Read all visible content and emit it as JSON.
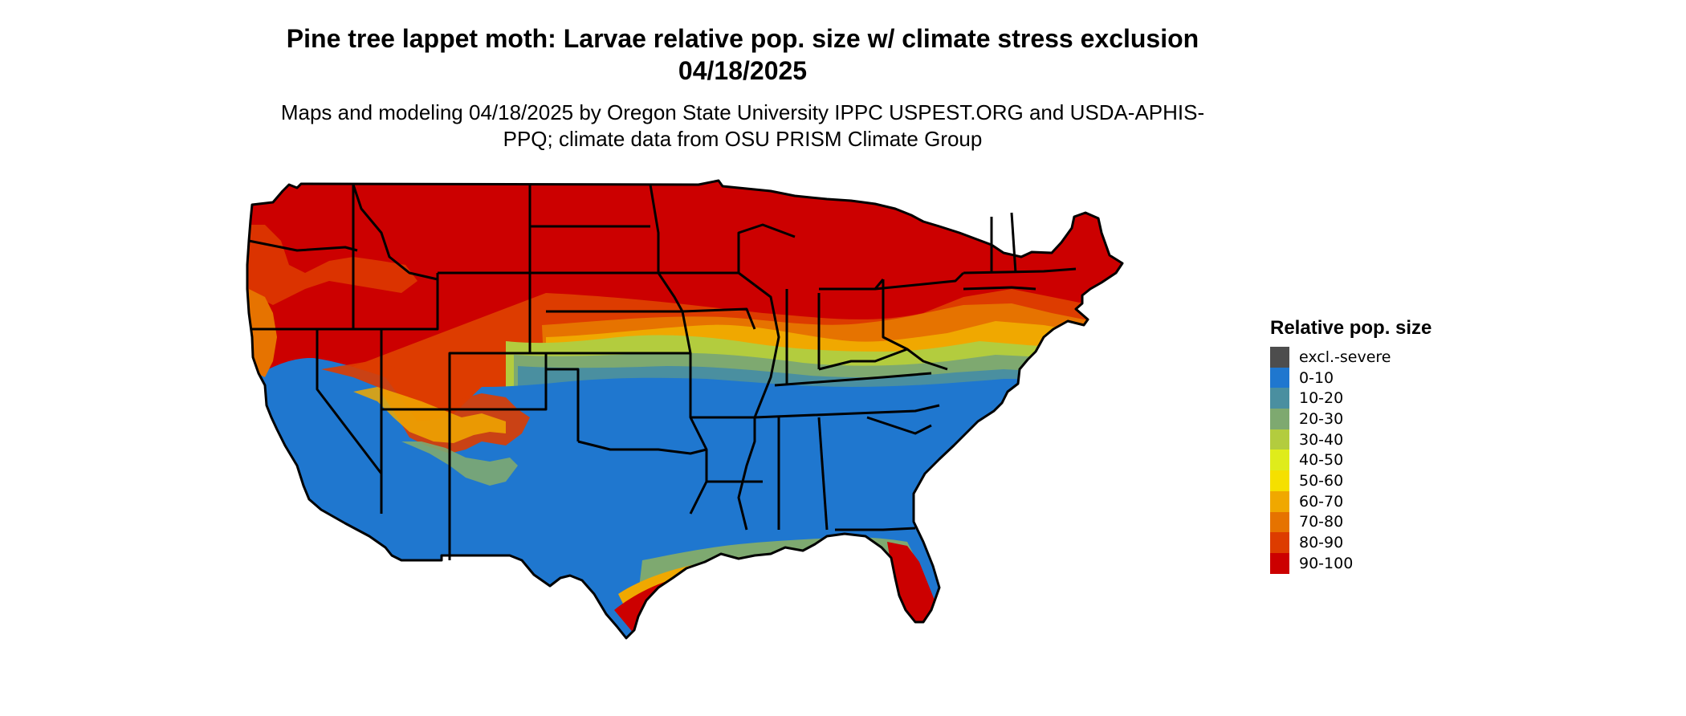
{
  "title": "Pine tree lappet moth: Larvae relative pop. size w/ climate stress exclusion 04/18/2025",
  "subtitle": "Maps and modeling 04/18/2025 by Oregon State University IPPC USPEST.ORG and USDA-APHIS-PPQ; climate data from OSU PRISM Climate Group",
  "legend": {
    "title": "Relative pop. size",
    "items": [
      {
        "label": "excl.-severe",
        "color": "#4d4d4d"
      },
      {
        "label": "0-10",
        "color": "#1f77cf"
      },
      {
        "label": "10-20",
        "color": "#4a8fa0"
      },
      {
        "label": "20-30",
        "color": "#7ea970"
      },
      {
        "label": "30-40",
        "color": "#b3cc3e"
      },
      {
        "label": "40-50",
        "color": "#dfec1b"
      },
      {
        "label": "50-60",
        "color": "#f5e000"
      },
      {
        "label": "60-70",
        "color": "#f0a800"
      },
      {
        "label": "70-80",
        "color": "#e67300"
      },
      {
        "label": "80-90",
        "color": "#dd3c00"
      },
      {
        "label": "90-100",
        "color": "#cc0000"
      }
    ]
  }
}
